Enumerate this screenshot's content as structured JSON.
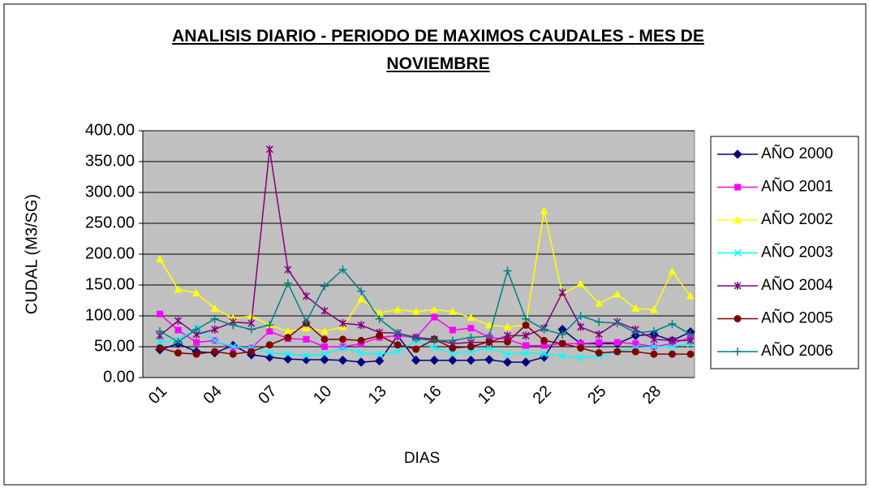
{
  "chart_data": {
    "type": "line",
    "title": "ANALISIS DIARIO - PERIODO DE MAXIMOS CAUDALES - MES DE NOVIEMBRE",
    "x_label": "DIAS",
    "y_label": "CUDAL (M3/SG)",
    "categories": [
      "01",
      null,
      null,
      "04",
      null,
      null,
      "07",
      null,
      null,
      "10",
      null,
      null,
      "13",
      null,
      null,
      "16",
      null,
      null,
      "19",
      null,
      null,
      "22",
      null,
      null,
      "25",
      null,
      null,
      "28",
      null,
      null
    ],
    "ylim": [
      0,
      400
    ],
    "yticks": [
      {
        "value": 0,
        "label": "0.00"
      },
      {
        "value": 50,
        "label": "50.00"
      },
      {
        "value": 100,
        "label": "100.00"
      },
      {
        "value": 150,
        "label": "150.00"
      },
      {
        "value": 200,
        "label": "200.00"
      },
      {
        "value": 250,
        "label": "250.00"
      },
      {
        "value": 300,
        "label": "300.00"
      },
      {
        "value": 350,
        "label": "350.00"
      },
      {
        "value": 400,
        "label": "400.00"
      }
    ],
    "grid": true,
    "legend": "right",
    "series": [
      {
        "name": "AÑO 2000",
        "color": "#000080",
        "marker": "diamond",
        "values": [
          45,
          55,
          42,
          40,
          52,
          37,
          33,
          30,
          29,
          29,
          28,
          25,
          27,
          68,
          28,
          28,
          28,
          28,
          29,
          25,
          25,
          33,
          78,
          55,
          55,
          55,
          68,
          70,
          60,
          74
        ]
      },
      {
        "name": "AÑO 2001",
        "color": "#ff00ff",
        "marker": "square",
        "values": [
          103,
          77,
          57,
          60,
          48,
          48,
          75,
          63,
          62,
          50,
          50,
          55,
          65,
          68,
          65,
          98,
          77,
          80,
          65,
          62,
          52,
          52,
          55,
          55,
          57,
          57,
          55,
          50,
          55,
          65
        ]
      },
      {
        "name": "AÑO 2002",
        "color": "#ffff00",
        "marker": "triangle",
        "values": [
          192,
          143,
          137,
          112,
          96,
          100,
          85,
          75,
          80,
          75,
          82,
          127,
          105,
          110,
          107,
          110,
          107,
          97,
          85,
          82,
          85,
          270,
          135,
          152,
          120,
          135,
          112,
          110,
          172,
          132
        ]
      },
      {
        "name": "AÑO 2003",
        "color": "#00ffff",
        "marker": "x",
        "values": [
          58,
          60,
          80,
          60,
          50,
          48,
          40,
          38,
          35,
          38,
          48,
          40,
          38,
          42,
          60,
          48,
          40,
          42,
          48,
          38,
          40,
          38,
          35,
          32,
          35,
          42,
          48,
          50,
          50,
          55
        ]
      },
      {
        "name": "AÑO 2004",
        "color": "#800080",
        "marker": "star",
        "values": [
          68,
          92,
          70,
          78,
          90,
          88,
          370,
          175,
          132,
          108,
          88,
          85,
          73,
          72,
          65,
          62,
          55,
          57,
          57,
          68,
          68,
          80,
          138,
          82,
          70,
          90,
          78,
          62,
          60,
          60
        ]
      },
      {
        "name": "AÑO 2005",
        "color": "#800000",
        "marker": "circle",
        "values": [
          48,
          40,
          38,
          42,
          38,
          42,
          53,
          65,
          88,
          62,
          62,
          60,
          68,
          53,
          46,
          62,
          48,
          50,
          58,
          58,
          85,
          60,
          55,
          48,
          40,
          42,
          42,
          38,
          38,
          38
        ]
      },
      {
        "name": "AÑO 2006",
        "color": "#008080",
        "marker": "plus",
        "values": [
          75,
          58,
          78,
          95,
          85,
          78,
          85,
          153,
          90,
          148,
          175,
          140,
          95,
          72,
          63,
          60,
          60,
          65,
          67,
          173,
          95,
          78,
          70,
          100,
          90,
          88,
          73,
          75,
          87,
          70
        ]
      }
    ]
  }
}
